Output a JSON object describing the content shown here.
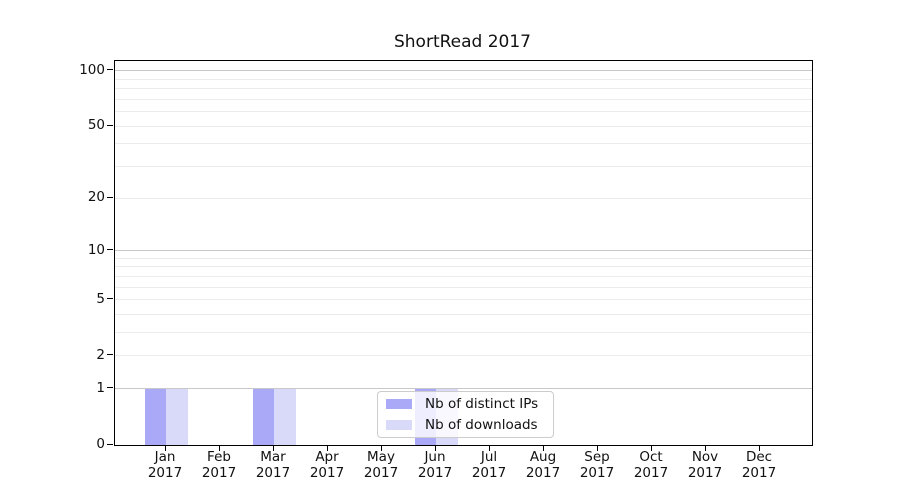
{
  "chart_data": {
    "type": "bar",
    "title": "ShortRead 2017",
    "months": [
      "Jan",
      "Feb",
      "Mar",
      "Apr",
      "May",
      "Jun",
      "Jul",
      "Aug",
      "Sep",
      "Oct",
      "Nov",
      "Dec"
    ],
    "year_label": "2017",
    "series": [
      {
        "name": "Nb of distinct IPs",
        "color": "#a9a9f8",
        "values": [
          1,
          0,
          1,
          0,
          0,
          1,
          0,
          0,
          0,
          0,
          0,
          0
        ]
      },
      {
        "name": "Nb of downloads",
        "color": "#d9d9f9",
        "values": [
          1,
          0,
          1,
          0,
          0,
          1,
          0,
          0,
          0,
          0,
          0,
          0
        ]
      }
    ],
    "y_scale": "log1p",
    "y_tick_values": [
      0,
      1,
      2,
      5,
      10,
      20,
      50,
      100
    ],
    "major_grid_values": [
      1,
      10,
      100
    ],
    "minor_grid_values": [
      2,
      3,
      4,
      5,
      6,
      7,
      8,
      9,
      20,
      30,
      40,
      50,
      60,
      70,
      80,
      90
    ],
    "ylim": [
      0,
      113
    ],
    "xlabel": "",
    "ylabel": "",
    "legend_position": "lower center",
    "grid": true,
    "colors": {
      "major_grid": "#c8c8c8",
      "minor_grid": "#ececec",
      "spine": "#000000",
      "text": "#111111",
      "legend_border": "#cccccc",
      "background": "#ffffff"
    }
  }
}
